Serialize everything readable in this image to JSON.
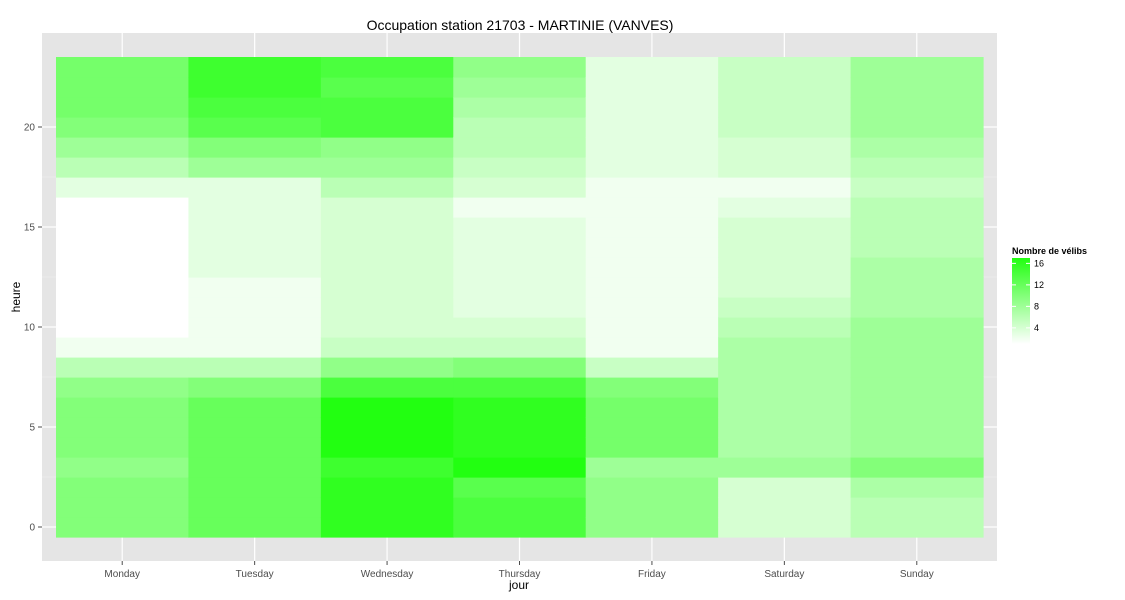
{
  "chart_data": {
    "type": "heatmap",
    "title": "Occupation station 21703 - MARTINIE (VANVES)",
    "xlabel": "jour",
    "ylabel": "heure",
    "x": [
      "Monday",
      "Tuesday",
      "Wednesday",
      "Thursday",
      "Friday",
      "Saturday",
      "Sunday"
    ],
    "y": [
      0,
      1,
      2,
      3,
      4,
      5,
      6,
      7,
      8,
      9,
      10,
      11,
      12,
      13,
      14,
      15,
      16,
      17,
      18,
      19,
      20,
      21,
      22,
      23
    ],
    "y_ticks": [
      0,
      5,
      10,
      15,
      20
    ],
    "ylim": [
      -0.5,
      23.5
    ],
    "grid": true,
    "legend": {
      "title": "Nombre de vélibs",
      "placement": "right",
      "ticks": [
        4,
        8,
        12,
        16
      ],
      "range": [
        1,
        17
      ],
      "color_low": "#ffffff",
      "color_high": "#22ff11"
    },
    "values": [
      [
        10,
        10,
        10,
        9,
        10,
        10,
        10,
        9,
        6,
        2,
        1,
        1,
        1,
        1,
        1,
        1,
        1,
        3,
        6,
        8,
        10,
        11,
        11,
        11
      ],
      [
        12,
        12,
        12,
        12,
        12,
        12,
        12,
        10,
        6,
        2,
        2,
        2,
        2,
        3,
        3,
        3,
        3,
        3,
        8,
        10,
        13,
        14,
        15,
        15
      ],
      [
        16,
        16,
        16,
        15,
        17,
        17,
        17,
        14,
        9,
        5,
        4,
        4,
        4,
        4,
        4,
        4,
        4,
        6,
        8,
        9,
        14,
        14,
        13,
        14
      ],
      [
        14,
        14,
        13,
        17,
        16,
        16,
        16,
        14,
        10,
        5,
        4,
        3,
        3,
        3,
        3,
        3,
        2,
        4,
        5,
        6,
        6,
        7,
        8,
        9
      ],
      [
        9,
        9,
        9,
        8,
        11,
        11,
        11,
        10,
        5,
        2,
        2,
        2,
        2,
        2,
        2,
        2,
        2,
        2,
        3,
        3,
        3,
        3,
        3,
        3
      ],
      [
        4,
        4,
        4,
        8,
        7,
        7,
        7,
        7,
        7,
        7,
        6,
        5,
        4,
        4,
        4,
        4,
        3,
        2,
        4,
        4,
        5,
        5,
        5,
        5
      ],
      [
        6,
        6,
        7,
        10,
        8,
        8,
        8,
        8,
        8,
        8,
        8,
        7,
        7,
        7,
        6,
        6,
        6,
        5,
        6,
        7,
        8,
        8,
        8,
        8
      ]
    ]
  }
}
